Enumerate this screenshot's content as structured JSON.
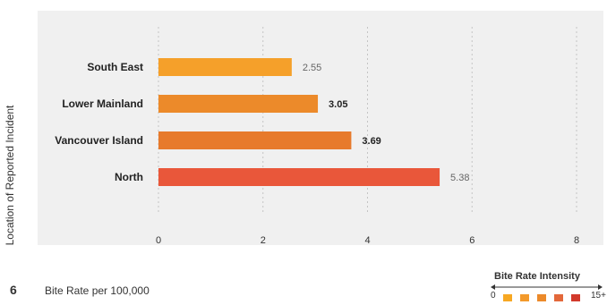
{
  "figure_number": "6",
  "chart_data": {
    "type": "bar",
    "orientation": "horizontal",
    "categories": [
      "South East",
      "Lower Mainland",
      "Vancouver Island",
      "North"
    ],
    "values": [
      2.55,
      3.05,
      3.69,
      5.38
    ],
    "value_labels": [
      "2.55",
      "3.05",
      "3.69",
      "5.38"
    ],
    "value_label_bold": [
      false,
      true,
      true,
      false
    ],
    "bar_colors": [
      "#f5a02a",
      "#ec8a2a",
      "#e77a2c",
      "#e9573a"
    ],
    "xlabel": "Bite Rate per 100,000",
    "ylabel": "Location of Reported Incident",
    "xticks": [
      0,
      2,
      4,
      6,
      8
    ],
    "xtick_labels": [
      "0",
      "2",
      "4",
      "6",
      "8"
    ],
    "xlim": [
      0,
      8
    ],
    "grid": "vertical"
  },
  "legend": {
    "title": "Bite Rate Intensity",
    "min_label": "0",
    "max_label": "15+",
    "colors": [
      "#f7a823",
      "#f39a2b",
      "#ec8a2a",
      "#e3683a",
      "#d23a2c"
    ]
  }
}
